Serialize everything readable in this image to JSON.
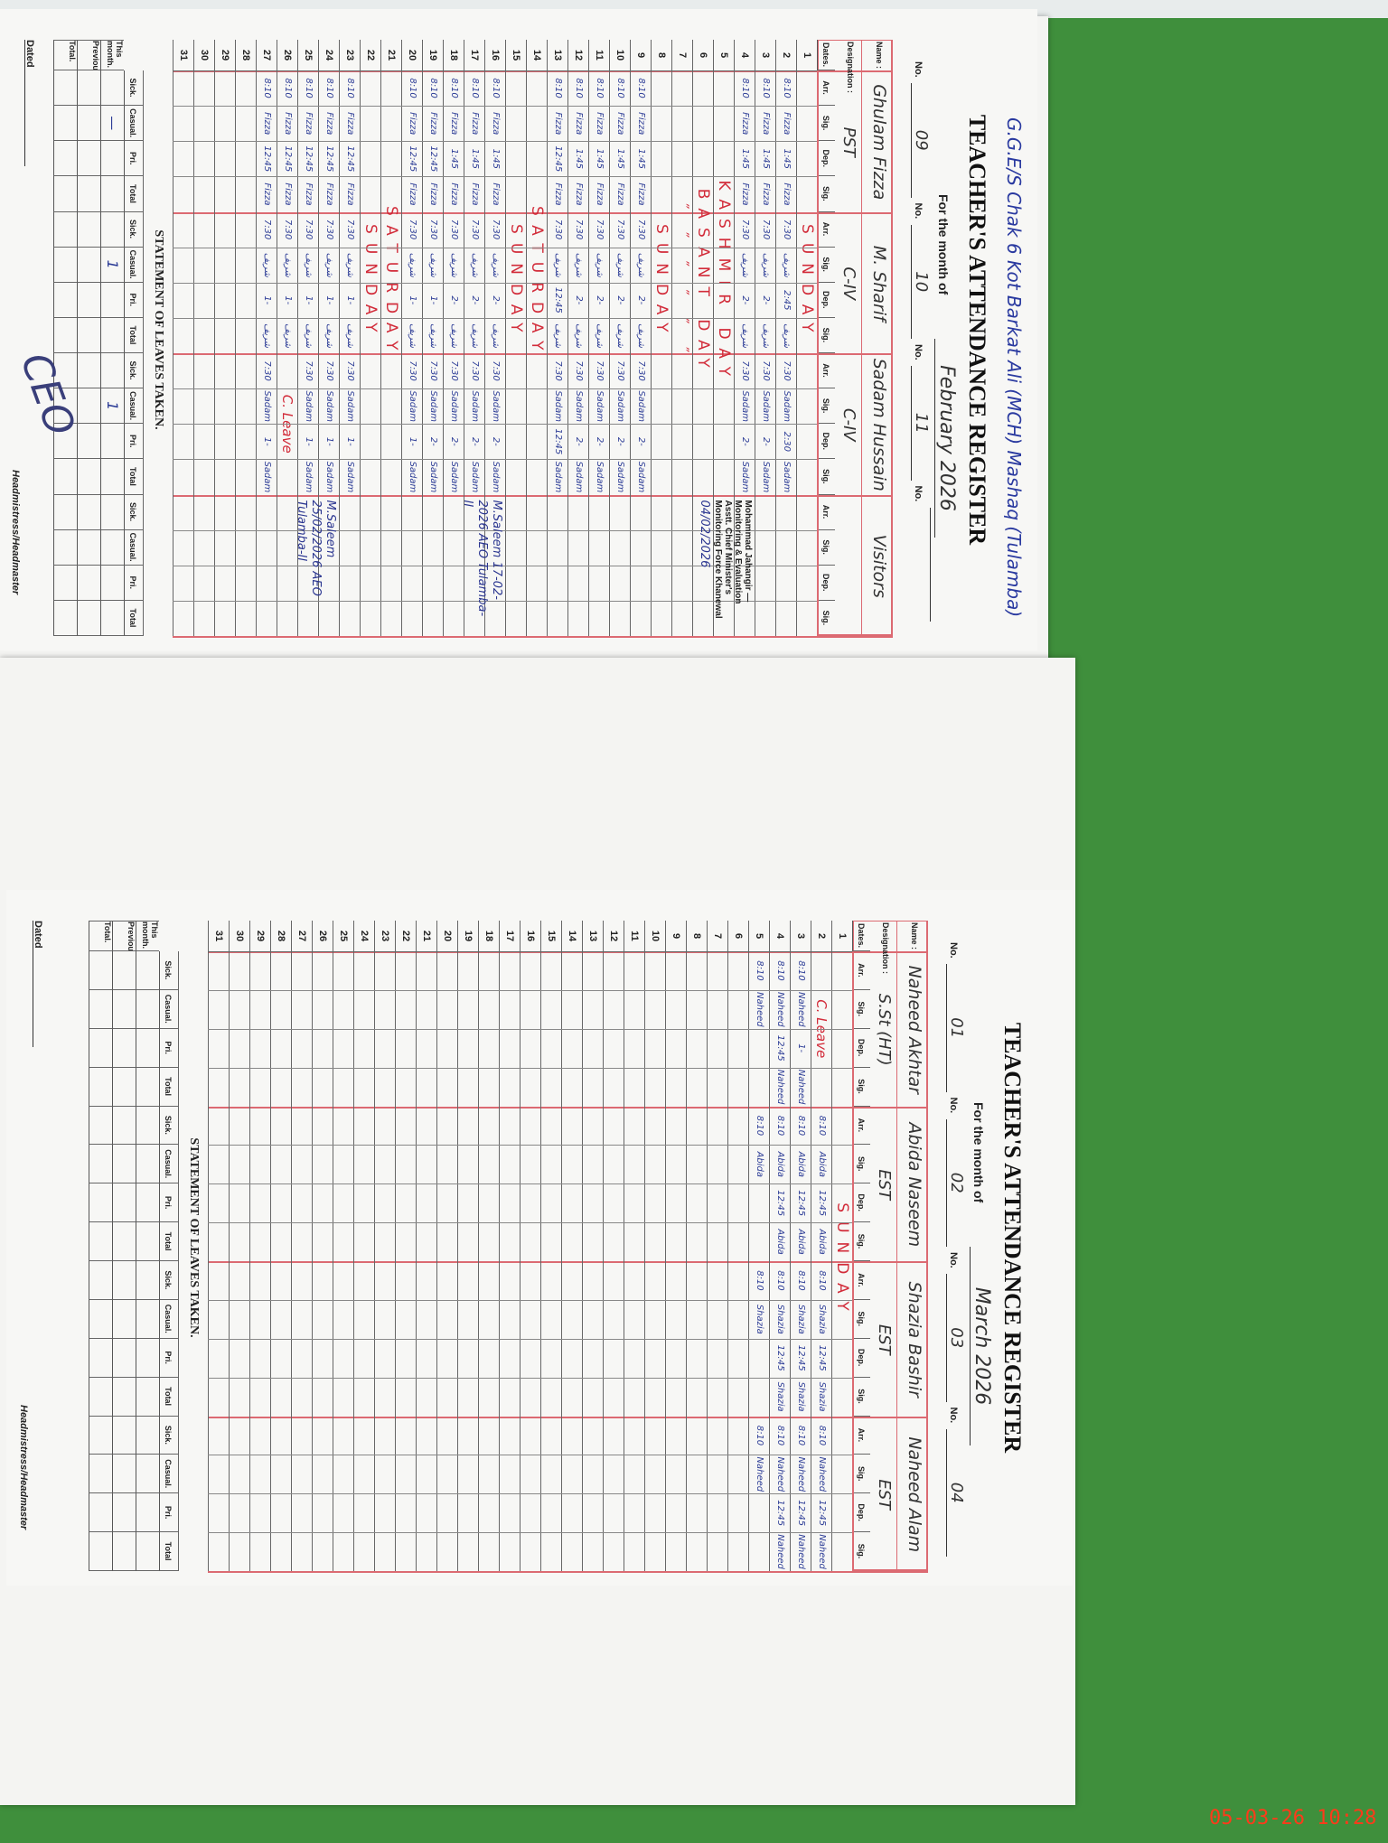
{
  "left_page": {
    "school_note": "G.G.E/S Chak 6 Kot Barkat Ali (MCH) Mashaq (Tulamba)",
    "title": "TEACHER'S ATTENDANCE REGISTER",
    "month_label": "For the month of",
    "month": "February 2026",
    "no_label": "No.",
    "name_label": "Name :",
    "designation_label": "Designation :",
    "col_headers": {
      "dates": "Dates.",
      "arr": "Arr.",
      "sig": "Sig.",
      "dep": "Dep."
    },
    "teachers": [
      {
        "no": "09",
        "name": "Ghulam Fizza",
        "designation": "PST"
      },
      {
        "no": "10",
        "name": "M. Sharif",
        "designation": "C-IV"
      },
      {
        "no": "11",
        "name": "Sadam Hussain",
        "designation": "C-IV"
      },
      {
        "no": "",
        "name": "Visitors",
        "designation": ""
      }
    ],
    "rows": [
      {
        "date": "1",
        "span": "SUNDAY"
      },
      {
        "date": "2",
        "cells": [
          "8:10",
          "Fizza",
          "1:45",
          "Fizza",
          "7:30",
          "شریف",
          "2:45",
          "شریف",
          "7:30",
          "Sadam",
          "2:30",
          "Sadam"
        ]
      },
      {
        "date": "3",
        "cells": [
          "8:10",
          "Fizza",
          "1:45",
          "Fizza",
          "7:30",
          "شریف",
          "2-",
          "شریف",
          "7:30",
          "Sadam",
          "2-",
          "Sadam"
        ]
      },
      {
        "date": "4",
        "cells": [
          "8:10",
          "Fizza",
          "1:45",
          "Fizza",
          "7:30",
          "شریف",
          "2-",
          "شریف",
          "7:30",
          "Sadam",
          "2-",
          "Sadam"
        ]
      },
      {
        "date": "5",
        "span": "KASHMIR DAY"
      },
      {
        "date": "6",
        "span": "BASANT DAY"
      },
      {
        "date": "7",
        "span": "″ ″ ″ ″ ″ ″"
      },
      {
        "date": "8",
        "span": "SUNDAY"
      },
      {
        "date": "9",
        "cells": [
          "8:10",
          "Fizza",
          "1:45",
          "Fizza",
          "7:30",
          "شریف",
          "2-",
          "شریف",
          "7:30",
          "Sadam",
          "2-",
          "Sadam"
        ]
      },
      {
        "date": "10",
        "cells": [
          "8:10",
          "Fizza",
          "1:45",
          "Fizza",
          "7:30",
          "شریف",
          "2-",
          "شریف",
          "7:30",
          "Sadam",
          "2-",
          "Sadam"
        ]
      },
      {
        "date": "11",
        "cells": [
          "8:10",
          "Fizza",
          "1:45",
          "Fizza",
          "7:30",
          "شریف",
          "2-",
          "شریف",
          "7:30",
          "Sadam",
          "2-",
          "Sadam"
        ]
      },
      {
        "date": "12",
        "cells": [
          "8:10",
          "Fizza",
          "1:45",
          "Fizza",
          "7:30",
          "شریف",
          "2-",
          "شریف",
          "7:30",
          "Sadam",
          "2-",
          "Sadam"
        ]
      },
      {
        "date": "13",
        "cells": [
          "8:10",
          "Fizza",
          "12:45",
          "Fizza",
          "7:30",
          "شریف",
          "12:45",
          "شریف",
          "7:30",
          "Sadam",
          "12:45",
          "Sadam"
        ]
      },
      {
        "date": "14",
        "span": "SATURDAY"
      },
      {
        "date": "15",
        "span": "SUNDAY"
      },
      {
        "date": "16",
        "cells": [
          "8:10",
          "Fizza",
          "1:45",
          "Fizza",
          "7:30",
          "شریف",
          "2-",
          "شریف",
          "7:30",
          "Sadam",
          "2-",
          "Sadam"
        ]
      },
      {
        "date": "17",
        "cells": [
          "8:10",
          "Fizza",
          "1:45",
          "Fizza",
          "7:30",
          "شریف",
          "2-",
          "شریف",
          "7:30",
          "Sadam",
          "2-",
          "Sadam"
        ]
      },
      {
        "date": "18",
        "cells": [
          "8:10",
          "Fizza",
          "1:45",
          "Fizza",
          "7:30",
          "شریف",
          "2-",
          "شریف",
          "7:30",
          "Sadam",
          "2-",
          "Sadam"
        ]
      },
      {
        "date": "19",
        "cells": [
          "8:10",
          "Fizza",
          "12:45",
          "Fizza",
          "7:30",
          "شریف",
          "1-",
          "شریف",
          "7:30",
          "Sadam",
          "2-",
          "Sadam"
        ]
      },
      {
        "date": "20",
        "cells": [
          "8:10",
          "Fizza",
          "12:45",
          "Fizza",
          "7:30",
          "شریف",
          "1-",
          "شریف",
          "7:30",
          "Sadam",
          "1-",
          "Sadam"
        ]
      },
      {
        "date": "21",
        "span": "SATURDAY"
      },
      {
        "date": "22",
        "span": "SUNDAY"
      },
      {
        "date": "23",
        "cells": [
          "8:10",
          "Fizza",
          "12:45",
          "Fizza",
          "7:30",
          "شریف",
          "1-",
          "شریف",
          "7:30",
          "Sadam",
          "1-",
          "Sadam"
        ]
      },
      {
        "date": "24",
        "cells": [
          "8:10",
          "Fizza",
          "12:45",
          "Fizza",
          "7:30",
          "شریف",
          "1-",
          "شریف",
          "7:30",
          "Sadam",
          "1-",
          "Sadam"
        ]
      },
      {
        "date": "25",
        "cells": [
          "8:10",
          "Fizza",
          "12:45",
          "Fizza",
          "7:30",
          "شریف",
          "1-",
          "شریف",
          "7:30",
          "Sadam",
          "1-",
          "Sadam"
        ]
      },
      {
        "date": "26",
        "cells": [
          "8:10",
          "Fizza",
          "12:45",
          "Fizza",
          "7:30",
          "شریف",
          "1-",
          "شریف",
          "C. Leave",
          "",
          "",
          ""
        ]
      },
      {
        "date": "27",
        "cells": [
          "8:10",
          "Fizza",
          "12:45",
          "Fizza",
          "7:30",
          "شریف",
          "1-",
          "شریف",
          "7:30",
          "Sadam",
          "1-",
          "Sadam"
        ]
      },
      {
        "date": "28"
      },
      {
        "date": "29"
      },
      {
        "date": "30"
      },
      {
        "date": "31"
      }
    ],
    "visitor_notes": [
      {
        "date": "4",
        "text": "Mohammad Jahangir — Monitoring & Evaluation Asstt. Chief Minister's Monitoring Force Khanewal",
        "kind": "stamp"
      },
      {
        "date": "6",
        "text": "04/02/2026",
        "kind": "hand"
      },
      {
        "date": "16",
        "text": "M.Saleem 17-02-2026 AEO Tulamba-II",
        "kind": "hand"
      },
      {
        "date": "24",
        "text": "M.Saleem 25/02/2026 AEO Tulamba-II",
        "kind": "hand"
      }
    ],
    "leaves": {
      "title": "STATEMENT OF LEAVES TAKEN.",
      "headers": [
        "Sick.",
        "Casual.",
        "Pri.",
        "Total"
      ],
      "rows": [
        {
          "label": "This month.",
          "values": [
            "",
            "—",
            "",
            "",
            "",
            "1",
            "",
            "",
            "",
            "1",
            "",
            "",
            "",
            "",
            "",
            ""
          ]
        },
        {
          "label": "Previous",
          "values": [
            "",
            "",
            "",
            "",
            "",
            "",
            "",
            "",
            "",
            "",
            "",
            "",
            "",
            "",
            "",
            ""
          ]
        },
        {
          "label": "Total.",
          "values": [
            "",
            "",
            "",
            "",
            "",
            "",
            "",
            "",
            "",
            "",
            "",
            "",
            "",
            "",
            "",
            ""
          ]
        }
      ]
    },
    "dated_label": "Dated",
    "headmaster_label": "Headmistress/Headmaster",
    "ceo_signature": "CEO"
  },
  "right_page": {
    "title": "TEACHER'S ATTENDANCE REGISTER",
    "month_label": "For the month of",
    "month": "March 2026",
    "no_label": "No.",
    "name_label": "Name :",
    "designation_label": "Designation :",
    "col_headers": {
      "dates": "Dates.",
      "arr": "Arr.",
      "sig": "Sig.",
      "dep": "Dep."
    },
    "teachers": [
      {
        "no": "01",
        "name": "Naheed Akhtar",
        "designation": "S.St (HT)"
      },
      {
        "no": "02",
        "name": "Abida Naseem",
        "designation": "EST"
      },
      {
        "no": "03",
        "name": "Shazia Bashir",
        "designation": "EST"
      },
      {
        "no": "04",
        "name": "Naheed Alam",
        "designation": "EST"
      }
    ],
    "rows": [
      {
        "date": "1",
        "span": "SUNDAY"
      },
      {
        "date": "2",
        "cells": [
          "C. Leave",
          "",
          "",
          "",
          "8:10",
          "Abida",
          "12:45",
          "Abida",
          "8:10",
          "Shazia",
          "12:45",
          "Shazia",
          "8:10",
          "Naheed",
          "12:45",
          "Naheed"
        ]
      },
      {
        "date": "3",
        "cells": [
          "8:10",
          "Naheed",
          "1-",
          "Naheed",
          "8:10",
          "Abida",
          "12:45",
          "Abida",
          "8:10",
          "Shazia",
          "12:45",
          "Shazia",
          "8:10",
          "Naheed",
          "12:45",
          "Naheed"
        ]
      },
      {
        "date": "4",
        "cells": [
          "8:10",
          "Naheed",
          "12:45",
          "Naheed",
          "8:10",
          "Abida",
          "12:45",
          "Abida",
          "8:10",
          "Shazia",
          "12:45",
          "Shazia",
          "8:10",
          "Naheed",
          "12:45",
          "Naheed"
        ]
      },
      {
        "date": "5",
        "cells": [
          "8:10",
          "Naheed",
          "",
          "",
          "8:10",
          "Abida",
          "",
          "",
          "8:10",
          "Shazia",
          "",
          "",
          "8:10",
          "Naheed",
          "",
          ""
        ]
      },
      {
        "date": "6"
      },
      {
        "date": "7"
      },
      {
        "date": "8"
      },
      {
        "date": "9"
      },
      {
        "date": "10"
      },
      {
        "date": "11"
      },
      {
        "date": "12"
      },
      {
        "date": "13"
      },
      {
        "date": "14"
      },
      {
        "date": "15"
      },
      {
        "date": "16"
      },
      {
        "date": "17"
      },
      {
        "date": "18"
      },
      {
        "date": "19"
      },
      {
        "date": "20"
      },
      {
        "date": "21"
      },
      {
        "date": "22"
      },
      {
        "date": "23"
      },
      {
        "date": "24"
      },
      {
        "date": "25"
      },
      {
        "date": "26"
      },
      {
        "date": "27"
      },
      {
        "date": "28"
      },
      {
        "date": "29"
      },
      {
        "date": "30"
      },
      {
        "date": "31"
      }
    ],
    "leaves": {
      "title": "STATEMENT OF LEAVES TAKEN.",
      "headers": [
        "Sick.",
        "Casual.",
        "Pri.",
        "Total"
      ],
      "rows": [
        {
          "label": "This month.",
          "values": [
            "",
            "",
            "",
            "",
            "",
            "",
            "",
            "",
            "",
            "",
            "",
            "",
            "",
            "",
            "",
            ""
          ]
        },
        {
          "label": "Previous",
          "values": [
            "",
            "",
            "",
            "",
            "",
            "",
            "",
            "",
            "",
            "",
            "",
            "",
            "",
            "",
            "",
            ""
          ]
        },
        {
          "label": "Total.",
          "values": [
            "",
            "",
            "",
            "",
            "",
            "",
            "",
            "",
            "",
            "",
            "",
            "",
            "",
            "",
            "",
            ""
          ]
        }
      ]
    },
    "dated_label": "Dated",
    "headmaster_label": "Headmistress/Headmaster"
  },
  "photo_timestamp": "05-03-26  10:28",
  "colors": {
    "ink_blue": "#2c3c96",
    "rule_red": "#dc6a72",
    "holiday_red": "#d22c3a",
    "background_green": "#3f8f3c",
    "timestamp": "#ff3a1a"
  }
}
